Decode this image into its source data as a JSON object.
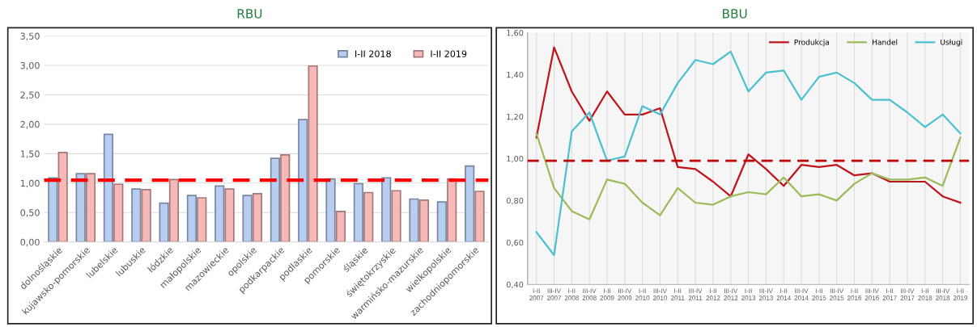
{
  "chart_data": [
    {
      "type": "bar",
      "title": "RBU",
      "categories": [
        "dolnośląskie",
        "kujawsko-pomorskie",
        "lubelskie",
        "lubuskie",
        "łódzkie",
        "małopolskie",
        "mazowieckie",
        "opolskie",
        "podkarpackie",
        "podlaskie",
        "pomorskie",
        "śląskie",
        "świętokrzyskie",
        "warmińsko-mazurskie",
        "wielkopolskie",
        "zachodniopomorskie"
      ],
      "series": [
        {
          "name": "I-II 2018",
          "color": "#b7cdf2",
          "values": [
            1.09,
            1.16,
            1.83,
            0.9,
            0.66,
            0.79,
            0.95,
            0.79,
            1.42,
            2.08,
            1.07,
            0.99,
            1.09,
            0.73,
            0.68,
            1.29
          ]
        },
        {
          "name": "I-II 2019",
          "color": "#f7b8b8",
          "values": [
            1.52,
            1.16,
            0.98,
            0.89,
            1.06,
            0.75,
            0.9,
            0.82,
            1.48,
            2.99,
            0.52,
            0.84,
            0.87,
            0.71,
            1.07,
            0.86
          ]
        }
      ],
      "ylim": [
        0,
        3.5
      ],
      "yticks": [
        {
          "value": 0,
          "label": "0,00"
        },
        {
          "value": 0.5,
          "label": "0,50"
        },
        {
          "value": 1,
          "label": "1,00"
        },
        {
          "value": 1.5,
          "label": "1,50"
        },
        {
          "value": 2,
          "label": "2,00"
        },
        {
          "value": 2.5,
          "label": "2,50"
        },
        {
          "value": 3,
          "label": "3,00"
        },
        {
          "value": 3.5,
          "label": "3,50"
        }
      ],
      "ref_lines": [
        {
          "axis": "y",
          "value": 1.05,
          "color": "#ff0000",
          "line_style": "dashed"
        }
      ],
      "grid": "y",
      "legend": "top right"
    },
    {
      "type": "line",
      "title": "BBU",
      "categories": [
        "I-II\n2007",
        "III-IV\n2007",
        "I-II\n2008",
        "III-IV\n2008",
        "I-II\n2009",
        "III-IV\n2009",
        "I-II\n2010",
        "III-IV\n2010",
        "I-II\n2011",
        "III-IV\n2011",
        "I-II\n2012",
        "III-IV\n2012",
        "I-II\n2013",
        "III-IV\n2013",
        "I-II\n2014",
        "III-IV\n2014",
        "I-II\n2015",
        "III-IV\n2015",
        "I-II\n2016",
        "III-IV\n2016",
        "I-II\n2017",
        "III-IV\n2017",
        "I-II\n2018",
        "III-IV\n2018",
        "I-II\n2019"
      ],
      "series": [
        {
          "name": "Produkcja",
          "color": "#c0141c",
          "values": [
            1.1,
            1.53,
            1.32,
            1.18,
            1.32,
            1.21,
            1.21,
            1.24,
            0.96,
            0.95,
            0.89,
            0.82,
            1.02,
            0.95,
            0.87,
            0.97,
            0.96,
            0.97,
            0.92,
            0.93,
            0.89,
            0.89,
            0.89,
            0.82,
            0.79
          ]
        },
        {
          "name": "Handel",
          "color": "#9bbb59",
          "values": [
            1.12,
            0.86,
            0.75,
            0.71,
            0.9,
            0.88,
            0.79,
            0.73,
            0.86,
            0.79,
            0.78,
            0.82,
            0.84,
            0.83,
            0.91,
            0.82,
            0.83,
            0.8,
            0.88,
            0.93,
            0.9,
            0.9,
            0.91,
            0.87,
            1.1
          ]
        },
        {
          "name": "Usługi",
          "color": "#4bc0cf",
          "values": [
            0.65,
            0.54,
            1.13,
            1.22,
            0.99,
            1.01,
            1.25,
            1.21,
            1.36,
            1.47,
            1.45,
            1.51,
            1.32,
            1.41,
            1.42,
            1.28,
            1.39,
            1.41,
            1.36,
            1.28,
            1.28,
            1.22,
            1.15,
            1.21,
            1.12
          ]
        }
      ],
      "ylim": [
        0.4,
        1.6
      ],
      "yticks": [
        {
          "value": 0.4,
          "label": "0,40"
        },
        {
          "value": 0.6,
          "label": "0,60"
        },
        {
          "value": 0.8,
          "label": "0,80"
        },
        {
          "value": 1.0,
          "label": "1,00"
        },
        {
          "value": 1.2,
          "label": "1,20"
        },
        {
          "value": 1.4,
          "label": "1,40"
        },
        {
          "value": 1.6,
          "label": "1,60"
        }
      ],
      "ref_lines": [
        {
          "axis": "y",
          "value": 0.99,
          "color": "#c00000",
          "line_style": "dashed"
        }
      ],
      "grid": "x",
      "legend": "top right",
      "line_style": "solid",
      "marker": "none"
    }
  ]
}
